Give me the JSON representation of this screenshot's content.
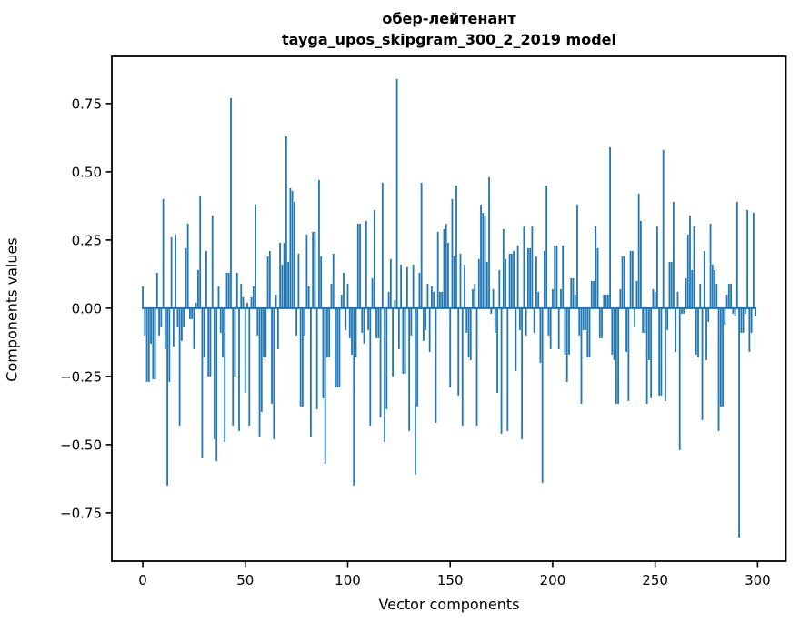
{
  "title": {
    "line1": "обер-лейтенант",
    "line2": "tayga_upos_skipgram_300_2_2019 model"
  },
  "axes": {
    "xlabel": "Vector components",
    "ylabel": "Components values"
  },
  "chart_data": {
    "type": "bar",
    "title": "обер-лейтенант",
    "subtitle": "tayga_upos_skipgram_300_2_2019 model",
    "xlabel": "Vector components",
    "ylabel": "Components values",
    "grid": false,
    "legend": "none",
    "bar_color": "#1f77b4",
    "frame_color": "#000000",
    "n_components": 300,
    "xlim": [
      -15.1,
      313.8
    ],
    "ylim": [
      -0.927,
      0.923
    ],
    "x_ticks": [
      {
        "v": 0,
        "label": "0"
      },
      {
        "v": 50,
        "label": "50"
      },
      {
        "v": 100,
        "label": "100"
      },
      {
        "v": 150,
        "label": "150"
      },
      {
        "v": 200,
        "label": "200"
      },
      {
        "v": 250,
        "label": "250"
      },
      {
        "v": 300,
        "label": "300"
      }
    ],
    "y_ticks": [
      {
        "v": 0.75,
        "label": "0.75"
      },
      {
        "v": 0.5,
        "label": "0.50"
      },
      {
        "v": 0.25,
        "label": "0.25"
      },
      {
        "v": 0.0,
        "label": "0.00"
      },
      {
        "v": -0.25,
        "label": "−0.25"
      },
      {
        "v": -0.5,
        "label": "−0.50"
      },
      {
        "v": -0.75,
        "label": "−0.75"
      }
    ],
    "values": [
      0.08,
      -0.1,
      -0.27,
      -0.27,
      -0.13,
      -0.26,
      -0.26,
      0.13,
      -0.1,
      -0.07,
      0.4,
      -0.15,
      -0.65,
      -0.27,
      0.26,
      -0.14,
      0.27,
      -0.07,
      -0.43,
      -0.12,
      -0.07,
      0.22,
      0.31,
      -0.04,
      -0.04,
      -0.15,
      0.02,
      0.14,
      0.41,
      -0.55,
      -0.18,
      0.21,
      -0.25,
      -0.25,
      0.34,
      -0.48,
      -0.56,
      0.08,
      -0.09,
      -0.18,
      -0.49,
      0.13,
      0.13,
      0.77,
      -0.43,
      -0.25,
      0.13,
      -0.45,
      0.09,
      0.04,
      -0.31,
      0.02,
      -0.43,
      0.04,
      0.08,
      0.38,
      -0.1,
      -0.47,
      -0.38,
      -0.18,
      -0.18,
      0.19,
      0.21,
      -0.35,
      -0.48,
      0.05,
      -0.15,
      0.24,
      0.16,
      0.24,
      0.63,
      0.17,
      0.44,
      0.43,
      0.39,
      -0.1,
      0.2,
      -0.36,
      -0.36,
      -0.1,
      0.27,
      0.08,
      -0.47,
      0.28,
      0.28,
      -0.37,
      0.47,
      0.19,
      -0.33,
      -0.57,
      -0.18,
      -0.18,
      0.09,
      0.2,
      -0.29,
      -0.29,
      -0.29,
      0.05,
      0.13,
      -0.08,
      0.09,
      -0.11,
      -0.17,
      -0.65,
      -0.18,
      0.31,
      0.31,
      -0.09,
      -0.13,
      0.32,
      -0.08,
      -0.43,
      0.11,
      0.36,
      -0.11,
      -0.11,
      -0.4,
      0.46,
      -0.49,
      -0.37,
      0.06,
      0.18,
      -0.25,
      0.03,
      0.84,
      -0.15,
      0.16,
      -0.24,
      -0.24,
      0.15,
      -0.45,
      -0.1,
      0.16,
      -0.61,
      -0.36,
      0.13,
      0.46,
      -0.12,
      -0.08,
      0.09,
      -0.16,
      0.08,
      0.06,
      -0.42,
      0.28,
      0.06,
      0.06,
      0.29,
      0.31,
      0.24,
      -0.29,
      0.4,
      0.19,
      0.45,
      -0.32,
      0.2,
      -0.43,
      0.16,
      -0.09,
      -0.18,
      -0.19,
      0.07,
      0.09,
      -0.43,
      0.18,
      0.38,
      0.35,
      0.34,
      0.17,
      0.48,
      -0.02,
      0.07,
      -0.09,
      -0.31,
      0.14,
      -0.46,
      0.29,
      0.18,
      -0.45,
      0.2,
      0.2,
      0.21,
      -0.23,
      0.23,
      -0.08,
      -0.48,
      0.3,
      -0.1,
      0.22,
      0.22,
      0.3,
      -0.09,
      0.19,
      0.06,
      -0.2,
      -0.64,
      0.21,
      0.45,
      -0.1,
      -0.15,
      0.07,
      0.23,
      0.23,
      -0.15,
      0.07,
      0.23,
      -0.17,
      -0.27,
      -0.17,
      0.11,
      0.11,
      0.05,
      0.38,
      -0.1,
      -0.35,
      -0.08,
      -0.08,
      -0.18,
      -0.18,
      0.1,
      0.1,
      0.3,
      0.22,
      -0.11,
      -0.11,
      0.05,
      0.05,
      0.05,
      0.59,
      -0.17,
      -0.19,
      -0.35,
      -0.35,
      0.07,
      0.19,
      0.19,
      -0.16,
      -0.34,
      0.21,
      0.21,
      -0.07,
      0.1,
      0.42,
      0.32,
      -0.09,
      -0.09,
      -0.35,
      -0.19,
      -0.33,
      0.07,
      0.06,
      0.3,
      -0.32,
      -0.32,
      0.58,
      -0.34,
      -0.08,
      0.17,
      0.17,
      0.39,
      -0.16,
      0.06,
      -0.52,
      -0.02,
      -0.02,
      0.11,
      0.27,
      0.34,
      0.14,
      0.3,
      -0.17,
      -0.18,
      0.09,
      -0.41,
      0.21,
      -0.19,
      -0.05,
      0.31,
      0.16,
      0.14,
      0.09,
      -0.45,
      -0.36,
      -0.36,
      -0.06,
      0.05,
      0.09,
      0.09,
      -0.02,
      -0.03,
      0.39,
      -0.84,
      -0.09,
      -0.09,
      -0.02,
      0.36,
      -0.16,
      -0.09,
      0.35,
      -0.03
    ]
  }
}
